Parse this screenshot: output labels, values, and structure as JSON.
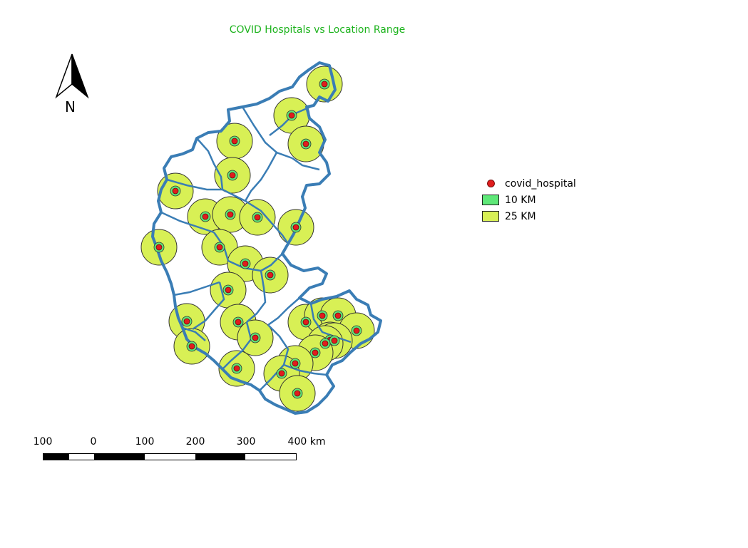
{
  "title": "COVID Hospitals vs Location Range",
  "north_label": "N",
  "legend": {
    "items": [
      {
        "label": "covid_hospital",
        "type": "point",
        "color": "#e01d1d"
      },
      {
        "label": "10 KM",
        "type": "fill",
        "color": "#5ee878"
      },
      {
        "label": "25 KM",
        "type": "fill",
        "color": "#d8f055"
      }
    ]
  },
  "scalebar": {
    "labels": [
      "100",
      "0",
      "100",
      "200",
      "300",
      "400 km"
    ]
  },
  "colors": {
    "boundary": "#3a7db5",
    "buffer_25km": "#d8f055",
    "buffer_10km": "#5ee878",
    "hospital": "#e01d1d",
    "title": "#1db31d"
  }
}
